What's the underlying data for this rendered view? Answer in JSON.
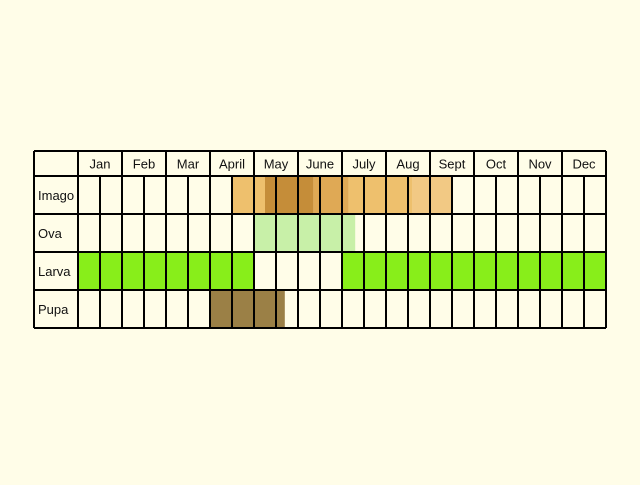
{
  "chart_data": {
    "type": "table",
    "months": [
      "Jan",
      "Feb",
      "Mar",
      "April",
      "May",
      "June",
      "July",
      "Aug",
      "Sept",
      "Oct",
      "Nov",
      "Dec"
    ],
    "slots_per_month": 2,
    "rows": [
      {
        "label": "Imago",
        "spans": [
          {
            "start": 7,
            "end": 8.5,
            "color": "#EEC06D"
          },
          {
            "start": 8.5,
            "end": 10.7,
            "color": "#C58D39"
          },
          {
            "start": 10.7,
            "end": 12.3,
            "color": "#DFA955"
          },
          {
            "start": 12.3,
            "end": 15.2,
            "color": "#EEC06D"
          },
          {
            "start": 15.2,
            "end": 17,
            "color": "#F2C984"
          }
        ]
      },
      {
        "label": "Ova",
        "spans": [
          {
            "start": 8,
            "end": 12.6,
            "color": "#C8F0A8"
          }
        ]
      },
      {
        "label": "Larva",
        "spans": [
          {
            "start": 0,
            "end": 8,
            "color": "#88EE1A"
          },
          {
            "start": 12,
            "end": 24,
            "color": "#88EE1A"
          }
        ]
      },
      {
        "label": "Pupa",
        "spans": [
          {
            "start": 6,
            "end": 9.4,
            "color": "#9B8046"
          }
        ]
      }
    ]
  }
}
